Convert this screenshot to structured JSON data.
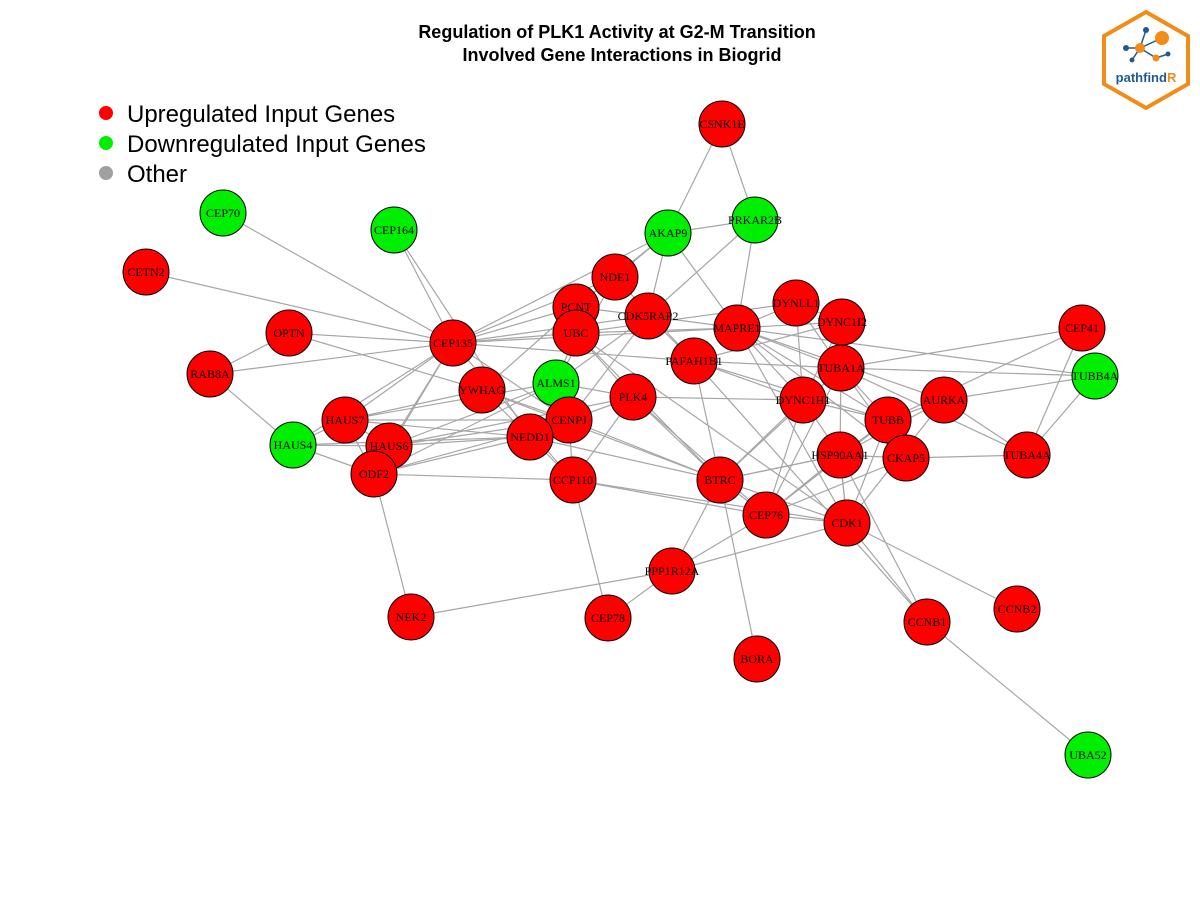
{
  "title": {
    "line1": "Regulation of PLK1 Activity at G2-M Transition",
    "line2": "Involved Gene Interactions in Biogrid"
  },
  "legend": [
    {
      "label": "Upregulated Input Genes",
      "color": "#ff0000"
    },
    {
      "label": "Downregulated Input Genes",
      "color": "#00ee00"
    },
    {
      "label": "Other",
      "color": "#a0a0a0"
    }
  ],
  "logo": {
    "text_main": "pathfind",
    "text_accent": "R",
    "border_color": "#f28c18"
  },
  "colors": {
    "up": "#ff0000",
    "down": "#00ee00",
    "other": "#a0a0a0",
    "edge": "#a6a6a6"
  },
  "nodes": [
    {
      "id": "CSNK1E",
      "status": "up"
    },
    {
      "id": "PRKAR2B",
      "status": "down"
    },
    {
      "id": "AKAP9",
      "status": "down"
    },
    {
      "id": "CEP70",
      "status": "down"
    },
    {
      "id": "CEP164",
      "status": "down"
    },
    {
      "id": "CETN2",
      "status": "up"
    },
    {
      "id": "NDE1",
      "status": "up"
    },
    {
      "id": "PCNT",
      "status": "up"
    },
    {
      "id": "CDK5RAP2",
      "status": "up"
    },
    {
      "id": "DYNLL1",
      "status": "up"
    },
    {
      "id": "DYNC1I2",
      "status": "up"
    },
    {
      "id": "CEP41",
      "status": "up"
    },
    {
      "id": "OPTN",
      "status": "up"
    },
    {
      "id": "CEP135",
      "status": "up"
    },
    {
      "id": "UBC",
      "status": "up"
    },
    {
      "id": "MAPRE1",
      "status": "up"
    },
    {
      "id": "PAFAH1B1",
      "status": "up"
    },
    {
      "id": "TUBA1A",
      "status": "up"
    },
    {
      "id": "TUBB4A",
      "status": "down"
    },
    {
      "id": "RAB8A",
      "status": "up"
    },
    {
      "id": "YWHAG",
      "status": "up"
    },
    {
      "id": "ALMS1",
      "status": "down"
    },
    {
      "id": "PLK4",
      "status": "up"
    },
    {
      "id": "DYNC1H1",
      "status": "up"
    },
    {
      "id": "AURKA",
      "status": "up"
    },
    {
      "id": "HAUS7",
      "status": "up"
    },
    {
      "id": "CENPJ",
      "status": "up"
    },
    {
      "id": "TUBB",
      "status": "up"
    },
    {
      "id": "HAUS4",
      "status": "down"
    },
    {
      "id": "HAUS6",
      "status": "up"
    },
    {
      "id": "NEDD1",
      "status": "up"
    },
    {
      "id": "HSP90AA1",
      "status": "up"
    },
    {
      "id": "CKAP5",
      "status": "up"
    },
    {
      "id": "TUBA4A",
      "status": "up"
    },
    {
      "id": "ODF2",
      "status": "up"
    },
    {
      "id": "CCP110",
      "status": "up"
    },
    {
      "id": "BTRC",
      "status": "up"
    },
    {
      "id": "CEP76",
      "status": "up"
    },
    {
      "id": "CDK1",
      "status": "up"
    },
    {
      "id": "PPP1R12A",
      "status": "up"
    },
    {
      "id": "NEK2",
      "status": "up"
    },
    {
      "id": "CEP78",
      "status": "up"
    },
    {
      "id": "CCNB1",
      "status": "up"
    },
    {
      "id": "CCNB2",
      "status": "up"
    },
    {
      "id": "BORA",
      "status": "up"
    },
    {
      "id": "UBA52",
      "status": "down"
    }
  ],
  "edges": [
    [
      "CSNK1E",
      "AKAP9"
    ],
    [
      "CSNK1E",
      "PRKAR2B"
    ],
    [
      "AKAP9",
      "PRKAR2B"
    ],
    [
      "AKAP9",
      "NDE1"
    ],
    [
      "AKAP9",
      "CDK5RAP2"
    ],
    [
      "AKAP9",
      "MAPRE1"
    ],
    [
      "AKAP9",
      "PCNT"
    ],
    [
      "AKAP9",
      "CEP135"
    ],
    [
      "PRKAR2B",
      "MAPRE1"
    ],
    [
      "PRKAR2B",
      "CDK5RAP2"
    ],
    [
      "CEP70",
      "CEP135"
    ],
    [
      "CEP164",
      "CEP135"
    ],
    [
      "CEP164",
      "NEDD1"
    ],
    [
      "CETN2",
      "CEP135"
    ],
    [
      "OPTN",
      "CEP135"
    ],
    [
      "OPTN",
      "RAB8A"
    ],
    [
      "OPTN",
      "YWHAG"
    ],
    [
      "RAB8A",
      "CEP135"
    ],
    [
      "RAB8A",
      "HAUS4"
    ],
    [
      "NDE1",
      "CEP135"
    ],
    [
      "NDE1",
      "PAFAH1B1"
    ],
    [
      "NDE1",
      "ALMS1"
    ],
    [
      "PCNT",
      "CEP135"
    ],
    [
      "PCNT",
      "CDK5RAP2"
    ],
    [
      "PCNT",
      "YWHAG"
    ],
    [
      "UBC",
      "CEP135"
    ],
    [
      "UBC",
      "MAPRE1"
    ],
    [
      "UBC",
      "DYNLL1"
    ],
    [
      "UBC",
      "PLK4"
    ],
    [
      "UBC",
      "BTRC"
    ],
    [
      "UBC",
      "ALMS1"
    ],
    [
      "UBC",
      "CDK1"
    ],
    [
      "CDK5RAP2",
      "CEP135"
    ],
    [
      "CDK5RAP2",
      "MAPRE1"
    ],
    [
      "CDK5RAP2",
      "ALMS1"
    ],
    [
      "CDK5RAP2",
      "PAFAH1B1"
    ],
    [
      "CDK5RAP2",
      "CENPJ"
    ],
    [
      "DYNLL1",
      "DYNC1I2"
    ],
    [
      "DYNLL1",
      "MAPRE1"
    ],
    [
      "DYNLL1",
      "DYNC1H1"
    ],
    [
      "DYNLL1",
      "TUBA1A"
    ],
    [
      "DYNC1I2",
      "DYNC1H1"
    ],
    [
      "DYNC1I2",
      "TUBA1A"
    ],
    [
      "DYNC1I2",
      "PAFAH1B1"
    ],
    [
      "DYNC1I2",
      "MAPRE1"
    ],
    [
      "CEP41",
      "TUBB"
    ],
    [
      "CEP41",
      "TUBA1A"
    ],
    [
      "CEP41",
      "TUBA4A"
    ],
    [
      "CEP135",
      "HAUS7"
    ],
    [
      "CEP135",
      "HAUS6"
    ],
    [
      "CEP135",
      "HAUS4"
    ],
    [
      "CEP135",
      "ODF2"
    ],
    [
      "CEP135",
      "CENPJ"
    ],
    [
      "CEP135",
      "CCP110"
    ],
    [
      "CEP135",
      "MAPRE1"
    ],
    [
      "CEP135",
      "PAFAH1B1"
    ],
    [
      "MAPRE1",
      "TUBA1A"
    ],
    [
      "MAPRE1",
      "DYNC1H1"
    ],
    [
      "MAPRE1",
      "TUBB"
    ],
    [
      "MAPRE1",
      "AURKA"
    ],
    [
      "MAPRE1",
      "CDK1"
    ],
    [
      "MAPRE1",
      "CKAP5"
    ],
    [
      "MAPRE1",
      "TUBB4A"
    ],
    [
      "PAFAH1B1",
      "DYNC1H1"
    ],
    [
      "PAFAH1B1",
      "TUBA1A"
    ],
    [
      "PAFAH1B1",
      "BTRC"
    ],
    [
      "PAFAH1B1",
      "TUBB"
    ],
    [
      "PAFAH1B1",
      "CCNB1"
    ],
    [
      "TUBA1A",
      "TUBB"
    ],
    [
      "TUBA1A",
      "TUBB4A"
    ],
    [
      "TUBA1A",
      "HSP90AA1"
    ],
    [
      "TUBA1A",
      "CKAP5"
    ],
    [
      "TUBA1A",
      "BTRC"
    ],
    [
      "TUBA1A",
      "CEP76"
    ],
    [
      "TUBA1A",
      "TUBA4A"
    ],
    [
      "TUBB4A",
      "TUBA4A"
    ],
    [
      "TUBB4A",
      "AURKA"
    ],
    [
      "YWHAG",
      "CENPJ"
    ],
    [
      "YWHAG",
      "NEDD1"
    ],
    [
      "YWHAG",
      "HAUS7"
    ],
    [
      "YWHAG",
      "BTRC"
    ],
    [
      "ALMS1",
      "HAUS6"
    ],
    [
      "ALMS1",
      "ODF2"
    ],
    [
      "ALMS1",
      "PLK4"
    ],
    [
      "ALMS1",
      "HAUS7"
    ],
    [
      "PLK4",
      "CENPJ"
    ],
    [
      "PLK4",
      "HAUS6"
    ],
    [
      "PLK4",
      "BTRC"
    ],
    [
      "PLK4",
      "DYNC1H1"
    ],
    [
      "PLK4",
      "CCP110"
    ],
    [
      "PLK4",
      "CEP76"
    ],
    [
      "DYNC1H1",
      "TUBB"
    ],
    [
      "DYNC1H1",
      "HSP90AA1"
    ],
    [
      "DYNC1H1",
      "BTRC"
    ],
    [
      "DYNC1H1",
      "CEP76"
    ],
    [
      "AURKA",
      "TUBB"
    ],
    [
      "AURKA",
      "HSP90AA1"
    ],
    [
      "AURKA",
      "CDK1"
    ],
    [
      "AURKA",
      "TUBA4A"
    ],
    [
      "HAUS7",
      "HAUS4"
    ],
    [
      "HAUS7",
      "HAUS6"
    ],
    [
      "HAUS7",
      "NEDD1"
    ],
    [
      "HAUS7",
      "ODF2"
    ],
    [
      "CENPJ",
      "HAUS6"
    ],
    [
      "CENPJ",
      "CCP110"
    ],
    [
      "CENPJ",
      "BTRC"
    ],
    [
      "CENPJ",
      "ODF2"
    ],
    [
      "CENPJ",
      "HAUS7"
    ],
    [
      "TUBB",
      "HSP90AA1"
    ],
    [
      "TUBB",
      "CKAP5"
    ],
    [
      "TUBB",
      "CEP76"
    ],
    [
      "TUBB",
      "CDK1"
    ],
    [
      "HAUS4",
      "HAUS6"
    ],
    [
      "HAUS4",
      "NEDD1"
    ],
    [
      "HAUS4",
      "ODF2"
    ],
    [
      "HAUS6",
      "NEDD1"
    ],
    [
      "HAUS6",
      "ODF2"
    ],
    [
      "NEDD1",
      "CCP110"
    ],
    [
      "NEDD1",
      "BTRC"
    ],
    [
      "NEDD1",
      "ODF2"
    ],
    [
      "HSP90AA1",
      "CDK1"
    ],
    [
      "HSP90AA1",
      "BTRC"
    ],
    [
      "HSP90AA1",
      "CEP76"
    ],
    [
      "HSP90AA1",
      "CKAP5"
    ],
    [
      "CKAP5",
      "CEP76"
    ],
    [
      "CKAP5",
      "TUBA4A"
    ],
    [
      "ODF2",
      "CCP110"
    ],
    [
      "ODF2",
      "NEK2"
    ],
    [
      "CCP110",
      "CEP76"
    ],
    [
      "CCP110",
      "CEP78"
    ],
    [
      "CCP110",
      "CDK1"
    ],
    [
      "BTRC",
      "CEP76"
    ],
    [
      "BTRC",
      "PPP1R12A"
    ],
    [
      "BTRC",
      "BORA"
    ],
    [
      "BTRC",
      "CDK1"
    ],
    [
      "BTRC",
      "HSP90AA1"
    ],
    [
      "CEP76",
      "CDK1"
    ],
    [
      "CEP76",
      "PPP1R12A"
    ],
    [
      "CDK1",
      "CCNB1"
    ],
    [
      "CDK1",
      "CCNB2"
    ],
    [
      "CDK1",
      "PPP1R12A"
    ],
    [
      "CDK1",
      "HSP90AA1"
    ],
    [
      "PPP1R12A",
      "NEK2"
    ],
    [
      "PPP1R12A",
      "CEP78"
    ],
    [
      "CCNB1",
      "UBA52"
    ],
    [
      "CCNB1",
      "HSP90AA1"
    ]
  ]
}
